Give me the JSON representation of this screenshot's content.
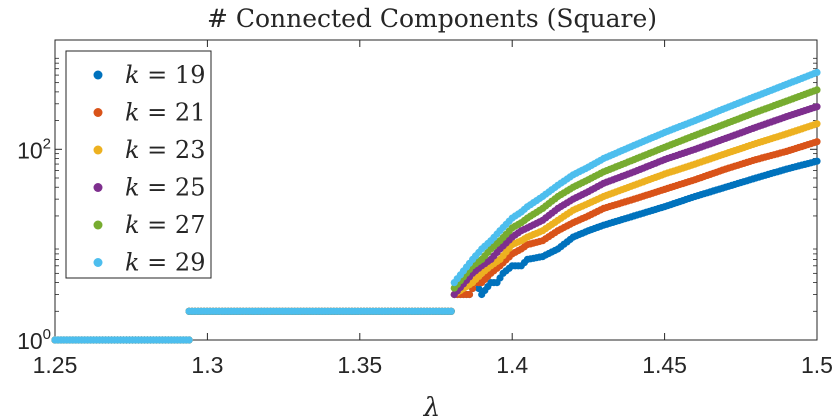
{
  "chart_data": {
    "type": "scatter",
    "title": "# Connected Components (Square)",
    "xlabel": "λ",
    "ylabel": "",
    "xlim": [
      1.25,
      1.5
    ],
    "ylim": [
      1,
      1400
    ],
    "yscale": "log",
    "grid": false,
    "legend_position": "top-left",
    "x_ticks": [
      {
        "value": 1.25,
        "label": "1.25"
      },
      {
        "value": 1.3,
        "label": "1.3"
      },
      {
        "value": 1.35,
        "label": "1.35"
      },
      {
        "value": 1.4,
        "label": "1.4"
      },
      {
        "value": 1.45,
        "label": "1.45"
      },
      {
        "value": 1.5,
        "label": "1.5"
      }
    ],
    "y_ticks": [
      {
        "value": 1,
        "base": "10",
        "exp": "0"
      },
      {
        "value": 100,
        "base": "10",
        "exp": "2"
      }
    ],
    "series": [
      {
        "name": "k = 19",
        "k": "19",
        "color": "#0072BD",
        "points": [
          [
            1.25,
            1
          ],
          [
            1.294,
            1
          ],
          [
            1.294,
            2
          ],
          [
            1.38,
            2
          ],
          [
            1.381,
            3
          ],
          [
            1.386,
            3
          ],
          [
            1.388,
            4
          ],
          [
            1.39,
            3
          ],
          [
            1.393,
            4
          ],
          [
            1.395,
            4
          ],
          [
            1.397,
            5
          ],
          [
            1.4,
            6
          ],
          [
            1.403,
            6
          ],
          [
            1.405,
            7
          ],
          [
            1.41,
            7.5
          ],
          [
            1.415,
            9
          ],
          [
            1.42,
            12
          ],
          [
            1.425,
            14
          ],
          [
            1.43,
            16
          ],
          [
            1.44,
            20
          ],
          [
            1.45,
            25
          ],
          [
            1.46,
            32
          ],
          [
            1.47,
            40
          ],
          [
            1.48,
            50
          ],
          [
            1.49,
            62
          ],
          [
            1.5,
            75
          ]
        ]
      },
      {
        "name": "k = 21",
        "k": "21",
        "color": "#D95319",
        "points": [
          [
            1.25,
            1
          ],
          [
            1.294,
            1
          ],
          [
            1.294,
            2
          ],
          [
            1.38,
            2
          ],
          [
            1.381,
            3
          ],
          [
            1.386,
            3
          ],
          [
            1.388,
            4
          ],
          [
            1.39,
            4
          ],
          [
            1.393,
            5
          ],
          [
            1.396,
            6
          ],
          [
            1.4,
            8
          ],
          [
            1.403,
            9
          ],
          [
            1.405,
            10
          ],
          [
            1.41,
            11
          ],
          [
            1.415,
            14
          ],
          [
            1.42,
            17
          ],
          [
            1.425,
            20
          ],
          [
            1.43,
            24
          ],
          [
            1.44,
            30
          ],
          [
            1.45,
            38
          ],
          [
            1.46,
            48
          ],
          [
            1.47,
            62
          ],
          [
            1.48,
            78
          ],
          [
            1.49,
            95
          ],
          [
            1.5,
            120
          ]
        ]
      },
      {
        "name": "k = 23",
        "k": "23",
        "color": "#EDB120",
        "points": [
          [
            1.25,
            1
          ],
          [
            1.294,
            1
          ],
          [
            1.294,
            2
          ],
          [
            1.38,
            2
          ],
          [
            1.381,
            3
          ],
          [
            1.387,
            4
          ],
          [
            1.39,
            5
          ],
          [
            1.393,
            6
          ],
          [
            1.396,
            7
          ],
          [
            1.4,
            10
          ],
          [
            1.403,
            11
          ],
          [
            1.405,
            12
          ],
          [
            1.41,
            14
          ],
          [
            1.415,
            18
          ],
          [
            1.42,
            23
          ],
          [
            1.425,
            27
          ],
          [
            1.43,
            32
          ],
          [
            1.44,
            42
          ],
          [
            1.45,
            55
          ],
          [
            1.46,
            70
          ],
          [
            1.47,
            90
          ],
          [
            1.48,
            115
          ],
          [
            1.49,
            145
          ],
          [
            1.5,
            185
          ]
        ]
      },
      {
        "name": "k = 25",
        "k": "25",
        "color": "#7E2F8E",
        "points": [
          [
            1.25,
            1
          ],
          [
            1.294,
            1
          ],
          [
            1.294,
            2
          ],
          [
            1.38,
            2
          ],
          [
            1.381,
            3
          ],
          [
            1.387,
            5
          ],
          [
            1.39,
            6
          ],
          [
            1.393,
            7
          ],
          [
            1.396,
            9
          ],
          [
            1.4,
            12
          ],
          [
            1.403,
            14
          ],
          [
            1.405,
            15
          ],
          [
            1.41,
            18
          ],
          [
            1.415,
            24
          ],
          [
            1.42,
            30
          ],
          [
            1.425,
            36
          ],
          [
            1.43,
            44
          ],
          [
            1.44,
            58
          ],
          [
            1.45,
            78
          ],
          [
            1.46,
            100
          ],
          [
            1.47,
            130
          ],
          [
            1.48,
            170
          ],
          [
            1.49,
            220
          ],
          [
            1.5,
            280
          ]
        ]
      },
      {
        "name": "k = 27",
        "k": "27",
        "color": "#77AC30",
        "points": [
          [
            1.25,
            1
          ],
          [
            1.294,
            1
          ],
          [
            1.294,
            2
          ],
          [
            1.38,
            2
          ],
          [
            1.381,
            3.5
          ],
          [
            1.387,
            6
          ],
          [
            1.39,
            7
          ],
          [
            1.393,
            9
          ],
          [
            1.396,
            11
          ],
          [
            1.4,
            15
          ],
          [
            1.403,
            17
          ],
          [
            1.405,
            19
          ],
          [
            1.41,
            24
          ],
          [
            1.415,
            32
          ],
          [
            1.42,
            40
          ],
          [
            1.425,
            48
          ],
          [
            1.43,
            58
          ],
          [
            1.44,
            78
          ],
          [
            1.45,
            105
          ],
          [
            1.46,
            140
          ],
          [
            1.47,
            185
          ],
          [
            1.48,
            245
          ],
          [
            1.49,
            320
          ],
          [
            1.5,
            420
          ]
        ]
      },
      {
        "name": "k = 29",
        "k": "29",
        "color": "#4DBEEE",
        "points": [
          [
            1.25,
            1
          ],
          [
            1.294,
            1
          ],
          [
            1.294,
            2
          ],
          [
            1.38,
            2
          ],
          [
            1.381,
            4
          ],
          [
            1.387,
            7
          ],
          [
            1.39,
            9
          ],
          [
            1.393,
            11
          ],
          [
            1.396,
            14
          ],
          [
            1.4,
            19
          ],
          [
            1.403,
            22
          ],
          [
            1.405,
            25
          ],
          [
            1.41,
            32
          ],
          [
            1.415,
            42
          ],
          [
            1.42,
            54
          ],
          [
            1.425,
            65
          ],
          [
            1.43,
            80
          ],
          [
            1.44,
            110
          ],
          [
            1.45,
            150
          ],
          [
            1.46,
            200
          ],
          [
            1.47,
            270
          ],
          [
            1.48,
            360
          ],
          [
            1.49,
            480
          ],
          [
            1.5,
            640
          ]
        ]
      }
    ]
  }
}
